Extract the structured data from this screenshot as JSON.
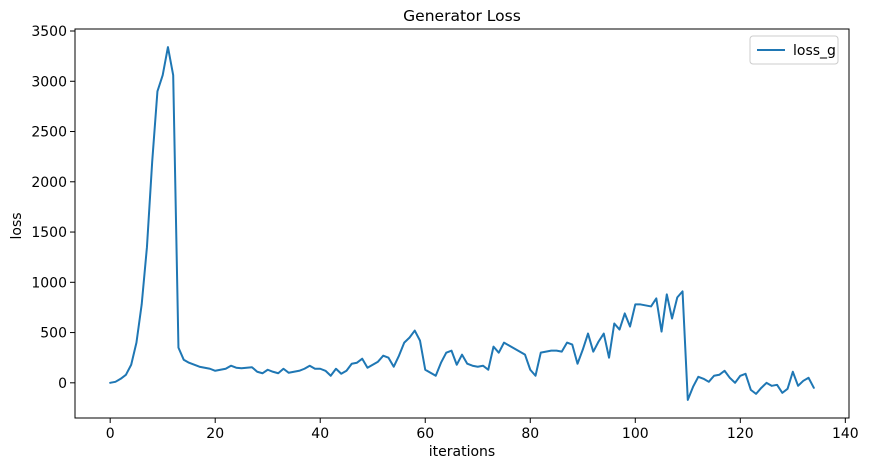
{
  "chart_data": {
    "type": "line",
    "title": "Generator Loss",
    "xlabel": "iterations",
    "ylabel": "loss",
    "xlim": [
      -6.7,
      140.7
    ],
    "ylim": [
      -350,
      3520
    ],
    "xticks": [
      0,
      20,
      40,
      60,
      80,
      100,
      120,
      140
    ],
    "yticks": [
      0,
      500,
      1000,
      1500,
      2000,
      2500,
      3000,
      3500
    ],
    "grid": false,
    "legend_position": "top-right",
    "colors": {
      "line": "#1f77b4",
      "axis": "#000000",
      "legend_border": "#cccccc"
    },
    "series": [
      {
        "name": "loss_g",
        "x": [
          0,
          1,
          2,
          3,
          4,
          5,
          6,
          7,
          8,
          9,
          10,
          11,
          12,
          13,
          14,
          15,
          16,
          17,
          18,
          19,
          20,
          21,
          22,
          23,
          24,
          25,
          26,
          27,
          28,
          29,
          30,
          31,
          32,
          33,
          34,
          35,
          36,
          37,
          38,
          39,
          40,
          41,
          42,
          43,
          44,
          45,
          46,
          47,
          48,
          49,
          50,
          51,
          52,
          53,
          54,
          55,
          56,
          57,
          58,
          59,
          60,
          61,
          62,
          63,
          64,
          65,
          66,
          67,
          68,
          69,
          70,
          71,
          72,
          73,
          74,
          75,
          76,
          77,
          78,
          79,
          80,
          81,
          82,
          83,
          84,
          85,
          86,
          87,
          88,
          89,
          90,
          91,
          92,
          93,
          94,
          95,
          96,
          97,
          98,
          99,
          100,
          101,
          102,
          103,
          104,
          105,
          106,
          107,
          108,
          109,
          110,
          111,
          112,
          113,
          114,
          115,
          116,
          117,
          118,
          119,
          120,
          121,
          122,
          123,
          124,
          125,
          126,
          127,
          128,
          129,
          130,
          131,
          132,
          133,
          134
        ],
        "values": [
          0,
          10,
          40,
          80,
          180,
          400,
          780,
          1350,
          2200,
          2900,
          3060,
          3340,
          3060,
          350,
          230,
          200,
          180,
          160,
          150,
          140,
          120,
          130,
          140,
          170,
          150,
          145,
          150,
          155,
          110,
          95,
          130,
          110,
          95,
          140,
          100,
          110,
          120,
          140,
          170,
          140,
          140,
          120,
          70,
          140,
          90,
          120,
          190,
          200,
          240,
          150,
          180,
          210,
          270,
          250,
          160,
          270,
          400,
          450,
          520,
          420,
          130,
          100,
          70,
          200,
          300,
          320,
          180,
          280,
          190,
          170,
          160,
          170,
          130,
          360,
          300,
          400,
          370,
          340,
          310,
          280,
          130,
          70,
          300,
          310,
          320,
          320,
          310,
          400,
          380,
          190,
          330,
          490,
          310,
          410,
          490,
          250,
          590,
          530,
          690,
          560,
          780,
          780,
          770,
          760,
          840,
          510,
          880,
          640,
          850,
          910,
          -170,
          -40,
          60,
          40,
          10,
          70,
          80,
          120,
          50,
          0,
          70,
          90,
          -70,
          -110,
          -50,
          0,
          -30,
          -20,
          -100,
          -60,
          110,
          -30,
          20,
          50,
          -50
        ]
      }
    ]
  }
}
